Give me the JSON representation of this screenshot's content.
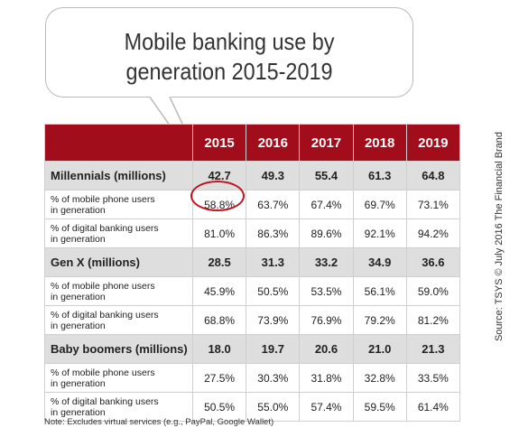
{
  "title_lines": [
    "Mobile banking use by",
    "generation 2015-2019"
  ],
  "accent_color": "#a20d1b",
  "highlight_color": "#c1121f",
  "note": "Note: Excludes virtual services (e.g., PayPal, Google Wallet)",
  "source": "Source: TSYS © July 2016 The Financial Brand",
  "chart_data": {
    "type": "table",
    "columns": [
      "2015",
      "2016",
      "2017",
      "2018",
      "2019"
    ],
    "groups": [
      {
        "label": "Millennials (millions)",
        "values": [
          "42.7",
          "49.3",
          "55.4",
          "61.3",
          "64.8"
        ],
        "rows": [
          {
            "label_lines": [
              "% of mobile phone users",
              "in generation"
            ],
            "values": [
              "58.8%",
              "63.7%",
              "67.4%",
              "69.7%",
              "73.1%"
            ]
          },
          {
            "label_lines": [
              "% of digital banking users",
              "in generation"
            ],
            "values": [
              "81.0%",
              "86.3%",
              "89.6%",
              "92.1%",
              "94.2%"
            ]
          }
        ]
      },
      {
        "label": "Gen X (millions)",
        "values": [
          "28.5",
          "31.3",
          "33.2",
          "34.9",
          "36.6"
        ],
        "rows": [
          {
            "label_lines": [
              "% of mobile phone users",
              "in generation"
            ],
            "values": [
              "45.9%",
              "50.5%",
              "53.5%",
              "56.1%",
              "59.0%"
            ]
          },
          {
            "label_lines": [
              "% of digital banking users",
              "in generation"
            ],
            "values": [
              "68.8%",
              "73.9%",
              "76.9%",
              "79.2%",
              "81.2%"
            ]
          }
        ]
      },
      {
        "label": "Baby boomers (millions)",
        "values": [
          "18.0",
          "19.7",
          "20.6",
          "21.0",
          "21.3"
        ],
        "rows": [
          {
            "label_lines": [
              "% of mobile phone users",
              "in generation"
            ],
            "values": [
              "27.5%",
              "30.3%",
              "31.8%",
              "32.8%",
              "33.5%"
            ]
          },
          {
            "label_lines": [
              "% of digital banking users",
              "in generation"
            ],
            "values": [
              "50.5%",
              "55.0%",
              "57.4%",
              "59.5%",
              "61.4%"
            ]
          }
        ]
      }
    ],
    "highlighted_cell": {
      "group": 0,
      "row": 0,
      "column": "2015"
    }
  }
}
